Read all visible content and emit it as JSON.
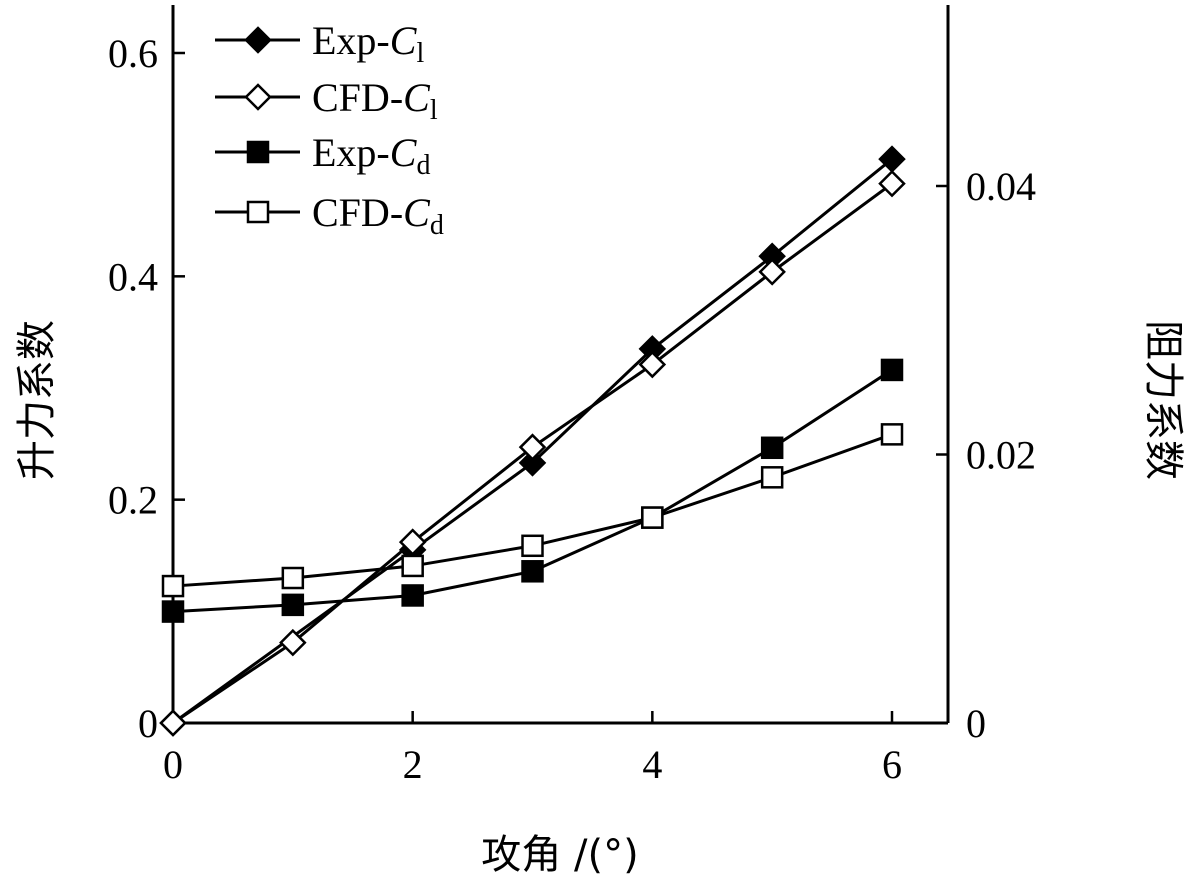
{
  "chart_data": {
    "type": "line",
    "xlabel": "攻角 /(°)",
    "ylabel_left": "升力系数",
    "ylabel_right": "阻力系数",
    "xlim": [
      0,
      6.5
    ],
    "ylim_left": [
      0,
      0.64
    ],
    "ylim_right": [
      0,
      0.0533
    ],
    "x_ticks": [
      "0",
      "2",
      "4",
      "6"
    ],
    "y_left_ticks": [
      "0",
      "0.2",
      "0.4",
      "0.6"
    ],
    "y_right_ticks": [
      "0",
      "0.02",
      "0.04"
    ],
    "grid": false,
    "legend_position": "top-left",
    "series": [
      {
        "name": "Exp-Cl",
        "legend_prefix": "Exp-",
        "legend_var": "C",
        "legend_sub": "l",
        "axis": "left",
        "marker": "diamond-filled",
        "x": [
          0,
          2,
          3,
          4,
          5,
          6
        ],
        "y": [
          0.0,
          0.155,
          0.233,
          0.335,
          0.418,
          0.505
        ]
      },
      {
        "name": "CFD-Cl",
        "legend_prefix": "CFD-",
        "legend_var": "C",
        "legend_sub": "l",
        "axis": "left",
        "marker": "diamond-open",
        "x": [
          0,
          1,
          2,
          3,
          4,
          5,
          6
        ],
        "y": [
          0.0,
          0.072,
          0.162,
          0.247,
          0.321,
          0.404,
          0.483
        ]
      },
      {
        "name": "Exp-Cd",
        "legend_prefix": "Exp-",
        "legend_var": "C",
        "legend_sub": "d",
        "axis": "right",
        "marker": "square-filled",
        "x": [
          0,
          1,
          2,
          3,
          4,
          5,
          6
        ],
        "y": [
          0.0083,
          0.0088,
          0.0095,
          0.0113,
          0.0153,
          0.0205,
          0.0263
        ]
      },
      {
        "name": "CFD-Cd",
        "legend_prefix": "CFD-",
        "legend_var": "C",
        "legend_sub": "d",
        "axis": "right",
        "marker": "square-open",
        "x": [
          0,
          1,
          2,
          3,
          4,
          5,
          6
        ],
        "y": [
          0.0102,
          0.0108,
          0.0117,
          0.0132,
          0.0153,
          0.0183,
          0.0215
        ]
      }
    ]
  }
}
